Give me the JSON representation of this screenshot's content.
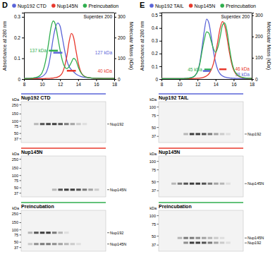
{
  "chart_data": [
    {
      "type": "line",
      "panel": "D",
      "ylabel": "Absorbance at 280 nm",
      "y2label": "Molecular Mass (kDa)",
      "annotations": [
        "Superdex 200"
      ],
      "legend": "top",
      "grid": false,
      "xlim": [
        8,
        18
      ],
      "xticks": [
        8,
        10,
        12,
        14,
        16,
        18
      ],
      "ylim": [
        0,
        0.32
      ],
      "yticks": [
        0,
        0.1,
        0.2,
        0.3
      ],
      "y2lim": [
        0,
        320
      ],
      "y2ticks": [
        0,
        100,
        200,
        300
      ],
      "x": [
        8,
        8.25,
        8.5,
        8.75,
        9,
        9.25,
        9.5,
        9.75,
        10,
        10.25,
        10.5,
        10.75,
        11,
        11.25,
        11.5,
        11.75,
        12,
        12.25,
        12.5,
        12.75,
        13,
        13.25,
        13.5,
        13.75,
        14,
        14.25,
        14.5,
        14.75,
        15,
        15.25,
        15.5,
        15.75,
        16,
        16.25,
        16.5,
        16.75,
        17,
        17.25,
        17.5,
        17.75,
        18
      ],
      "series": [
        {
          "name": "Nup192 CTD",
          "color": "#5a64d8",
          "values": [
            0.003,
            0.003,
            0.003,
            0.003,
            0.004,
            0.005,
            0.006,
            0.008,
            0.012,
            0.02,
            0.035,
            0.07,
            0.13,
            0.2,
            0.25,
            0.27,
            0.255,
            0.2,
            0.14,
            0.09,
            0.06,
            0.045,
            0.035,
            0.025,
            0.018,
            0.013,
            0.01,
            0.008,
            0.007,
            0.006,
            0.005,
            0.005,
            0.004,
            0.004,
            0.004,
            0.003,
            0.003,
            0.003,
            0.003,
            0.003,
            0.003
          ]
        },
        {
          "name": "Nup145N",
          "color": "#e8382c",
          "values": [
            0.002,
            0.002,
            0.002,
            0.002,
            0.002,
            0.002,
            0.002,
            0.002,
            0.002,
            0.002,
            0.003,
            0.003,
            0.004,
            0.005,
            0.007,
            0.01,
            0.016,
            0.03,
            0.06,
            0.11,
            0.18,
            0.22,
            0.2,
            0.14,
            0.08,
            0.04,
            0.02,
            0.012,
            0.008,
            0.006,
            0.005,
            0.004,
            0.004,
            0.003,
            0.003,
            0.003,
            0.003,
            0.003,
            0.003,
            0.003,
            0.003
          ]
        },
        {
          "name": "Preincubation",
          "color": "#2fae4e",
          "values": [
            0.003,
            0.003,
            0.003,
            0.004,
            0.005,
            0.007,
            0.01,
            0.016,
            0.03,
            0.06,
            0.11,
            0.18,
            0.25,
            0.28,
            0.26,
            0.2,
            0.14,
            0.09,
            0.06,
            0.05,
            0.06,
            0.08,
            0.1,
            0.09,
            0.06,
            0.035,
            0.02,
            0.012,
            0.008,
            0.006,
            0.005,
            0.004,
            0.004,
            0.004,
            0.003,
            0.003,
            0.003,
            0.003,
            0.003,
            0.003,
            0.003
          ]
        }
      ],
      "mass_lines": [
        {
          "label": "137 kDa",
          "value": 137,
          "x": [
            10.75,
            11.75
          ],
          "color": "#2fae4e"
        },
        {
          "label": "127 kDa",
          "value": 127,
          "x": [
            11.25,
            12.25
          ],
          "color": "#5a64d8"
        },
        {
          "label": "40 kDa",
          "value": 40,
          "x": [
            12.75,
            13.75
          ],
          "color": "#e8382c"
        }
      ]
    },
    {
      "type": "line",
      "panel": "E",
      "ylabel": "Absorbance at 280 nm",
      "y2label": "Molecular Mass (kDa)",
      "annotations": [
        "Superdex 200"
      ],
      "legend": "top",
      "grid": false,
      "xlim": [
        8,
        18
      ],
      "xticks": [
        8,
        10,
        12,
        14,
        16,
        18
      ],
      "ylim": [
        0,
        0.52
      ],
      "yticks": [
        0,
        0.1,
        0.2,
        0.3,
        0.4,
        0.5
      ],
      "y2lim": [
        0,
        312
      ],
      "y2ticks": [
        0,
        100,
        200,
        300
      ],
      "x": [
        8,
        8.25,
        8.5,
        8.75,
        9,
        9.25,
        9.5,
        9.75,
        10,
        10.25,
        10.5,
        10.75,
        11,
        11.25,
        11.5,
        11.75,
        12,
        12.25,
        12.5,
        12.75,
        13,
        13.25,
        13.5,
        13.75,
        14,
        14.25,
        14.5,
        14.75,
        15,
        15.25,
        15.5,
        15.75,
        16,
        16.25,
        16.5,
        16.75,
        17,
        17.25,
        17.5,
        17.75,
        18
      ],
      "series": [
        {
          "name": "Nup192 TAIL",
          "color": "#5a64d8",
          "values": [
            0.003,
            0.003,
            0.003,
            0.003,
            0.003,
            0.003,
            0.003,
            0.003,
            0.003,
            0.003,
            0.004,
            0.005,
            0.007,
            0.01,
            0.016,
            0.03,
            0.06,
            0.13,
            0.25,
            0.38,
            0.47,
            0.44,
            0.34,
            0.22,
            0.13,
            0.07,
            0.04,
            0.025,
            0.016,
            0.012,
            0.009,
            0.007,
            0.006,
            0.005,
            0.005,
            0.004,
            0.004,
            0.004,
            0.004,
            0.004,
            0.004
          ]
        },
        {
          "name": "Nup145N",
          "color": "#e8382c",
          "values": [
            0.003,
            0.003,
            0.003,
            0.003,
            0.003,
            0.003,
            0.003,
            0.003,
            0.003,
            0.003,
            0.003,
            0.003,
            0.003,
            0.004,
            0.004,
            0.005,
            0.006,
            0.008,
            0.011,
            0.016,
            0.025,
            0.04,
            0.07,
            0.12,
            0.2,
            0.3,
            0.4,
            0.45,
            0.42,
            0.33,
            0.22,
            0.13,
            0.07,
            0.04,
            0.025,
            0.016,
            0.011,
            0.008,
            0.006,
            0.005,
            0.005
          ]
        },
        {
          "name": "Preincubation",
          "color": "#2fae4e",
          "values": [
            0.003,
            0.003,
            0.003,
            0.003,
            0.003,
            0.003,
            0.003,
            0.003,
            0.003,
            0.003,
            0.004,
            0.005,
            0.007,
            0.01,
            0.016,
            0.03,
            0.06,
            0.12,
            0.22,
            0.31,
            0.37,
            0.36,
            0.3,
            0.24,
            0.21,
            0.25,
            0.33,
            0.42,
            0.44,
            0.38,
            0.26,
            0.15,
            0.08,
            0.045,
            0.028,
            0.018,
            0.012,
            0.009,
            0.007,
            0.006,
            0.005
          ]
        }
      ],
      "mass_lines": [
        {
          "label": "45 kDa",
          "value": 45,
          "x": [
            12.75,
            13.5
          ],
          "color": "#2fae4e"
        },
        {
          "label": "46 kDa",
          "value": 46,
          "x": [
            14.4,
            15.2
          ],
          "color": "#e8382c"
        },
        {
          "label": "38 kDa",
          "value": 38,
          "x": [
            12.6,
            13.4
          ],
          "color": "#5a64d8"
        }
      ]
    }
  ],
  "gels": [
    [
      {
        "title": "Nup192 CTD",
        "color": "#5a64d8",
        "unit": "kDa",
        "ylim": [
          30,
          300
        ],
        "log": true,
        "markers": [
          250,
          150,
          100,
          75,
          50,
          37
        ],
        "bands": [
          {
            "label": "Nup192",
            "kda": 85,
            "intensities": [
              0,
              0,
              0.3,
              0.8,
              0.9,
              0.9,
              0.8,
              0.6,
              0.4,
              0.2,
              0.1,
              0,
              0,
              0
            ]
          }
        ]
      },
      {
        "title": "Nup145N",
        "color": "#e8382c",
        "unit": "kDa",
        "ylim": [
          30,
          300
        ],
        "log": true,
        "markers": [
          250,
          150,
          100,
          75,
          50,
          37
        ],
        "bands": [
          {
            "label": "Nup145N",
            "kda": 45,
            "intensities": [
              0,
              0,
              0,
              0,
              0,
              0.3,
              0.8,
              0.9,
              0.9,
              0.8,
              0.6,
              0.4,
              0.2,
              0
            ]
          }
        ]
      },
      {
        "title": "Preincubation",
        "color": "#2fae4e",
        "unit": "kDa",
        "ylim": [
          30,
          300
        ],
        "log": true,
        "markers": [
          250,
          150,
          100,
          75,
          50,
          37
        ],
        "bands": [
          {
            "label": "Nup192",
            "kda": 85,
            "intensities": [
              0,
              0.3,
              0.8,
              0.9,
              0.9,
              0.6,
              0.3,
              0.1,
              0,
              0,
              0,
              0,
              0,
              0
            ]
          },
          {
            "label": "Nup145N",
            "kda": 45,
            "intensities": [
              0,
              0.2,
              0.5,
              0.6,
              0.6,
              0.5,
              0.4,
              0.3,
              0.2,
              0.1,
              0,
              0,
              0,
              0
            ]
          }
        ]
      }
    ],
    [
      {
        "title": "Nup192 TAIL",
        "color": "#5a64d8",
        "unit": "kDa",
        "ylim": [
          30,
          120
        ],
        "log": true,
        "markers": [
          100,
          75,
          50,
          37
        ],
        "bands": [
          {
            "label": "Nup192",
            "kda": 40,
            "intensities": [
              0,
              0,
              0,
              0,
              0.3,
              0.9,
              0.9,
              0.8,
              0.6,
              0.4,
              0.2,
              0.1,
              0,
              0
            ]
          }
        ]
      },
      {
        "title": "Nup145N",
        "color": "#e8382c",
        "unit": "kDa",
        "ylim": [
          30,
          120
        ],
        "log": true,
        "markers": [
          100,
          75,
          50,
          37
        ],
        "bands": [
          {
            "label": "Nup145N",
            "kda": 47,
            "intensities": [
              0,
              0,
              0.3,
              0.6,
              0.8,
              0.9,
              0.9,
              0.8,
              0.6,
              0.4,
              0.3,
              0.1,
              0,
              0
            ]
          }
        ]
      },
      {
        "title": "Preincubation",
        "color": "#2fae4e",
        "unit": "kDa",
        "ylim": [
          30,
          120
        ],
        "log": true,
        "markers": [
          100,
          75,
          50,
          37
        ],
        "bands": [
          {
            "label": "Nup145N",
            "kda": 47,
            "intensities": [
              0,
              0,
              0,
              0.3,
              0.6,
              0.6,
              0.5,
              0.4,
              0.3,
              0.2,
              0.1,
              0,
              0,
              0
            ]
          },
          {
            "label": "Nup192",
            "kda": 40,
            "intensities": [
              0,
              0,
              0,
              0,
              0.5,
              0.9,
              0.9,
              0.8,
              0.6,
              0.4,
              0.2,
              0.1,
              0,
              0
            ]
          }
        ]
      }
    ]
  ]
}
